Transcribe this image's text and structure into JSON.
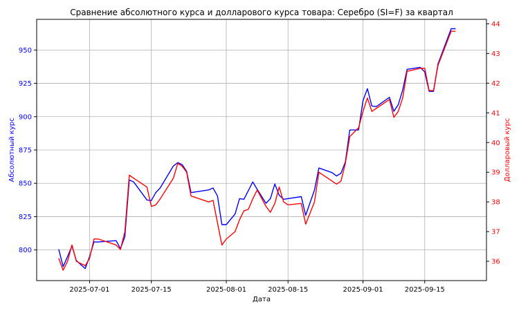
{
  "chart_data": {
    "type": "line",
    "title": "Сравнение абсолютного курса и долларового курса товара: Серебро (SI=F) за квартал",
    "xlabel": "Дата",
    "ylabel_left": "Абсолютный курс",
    "ylabel_right": "Долларовый курс",
    "x_ticks": [
      "2025-07-01",
      "2025-07-15",
      "2025-08-01",
      "2025-08-15",
      "2025-09-01",
      "2025-09-15"
    ],
    "ylim_left": [
      777,
      973
    ],
    "ylim_right": [
      35.35,
      44.15
    ],
    "yticks_left": [
      800,
      825,
      850,
      875,
      900,
      925,
      950
    ],
    "yticks_right": [
      36,
      37,
      38,
      39,
      40,
      41,
      42,
      43,
      44
    ],
    "xlim": [
      "2025-06-19",
      "2025-09-29"
    ],
    "grid": true,
    "colors": {
      "left": "#0000ff",
      "right": "#ff0000"
    },
    "series": [
      {
        "axis": "left",
        "color": "#0000ff",
        "x": [
          "2025-06-24",
          "2025-06-25",
          "2025-06-26",
          "2025-06-27",
          "2025-06-28",
          "2025-06-30",
          "2025-07-01",
          "2025-07-02",
          "2025-07-03",
          "2025-07-07",
          "2025-07-08",
          "2025-07-09",
          "2025-07-10",
          "2025-07-11",
          "2025-07-14",
          "2025-07-15",
          "2025-07-16",
          "2025-07-17",
          "2025-07-20",
          "2025-07-21",
          "2025-07-22",
          "2025-07-23",
          "2025-07-24",
          "2025-07-28",
          "2025-07-29",
          "2025-07-30",
          "2025-07-31",
          "2025-08-01",
          "2025-08-03",
          "2025-08-04",
          "2025-08-05",
          "2025-08-06",
          "2025-08-07",
          "2025-08-08",
          "2025-08-10",
          "2025-08-11",
          "2025-08-12",
          "2025-08-13",
          "2025-08-14",
          "2025-08-15",
          "2025-08-18",
          "2025-08-19",
          "2025-08-21",
          "2025-08-22",
          "2025-08-25",
          "2025-08-26",
          "2025-08-27",
          "2025-08-28",
          "2025-08-29",
          "2025-08-31",
          "2025-09-01",
          "2025-09-02",
          "2025-09-03",
          "2025-09-04",
          "2025-09-07",
          "2025-09-08",
          "2025-09-09",
          "2025-09-10",
          "2025-09-11",
          "2025-09-14",
          "2025-09-15",
          "2025-09-16",
          "2025-09-17",
          "2025-09-18",
          "2025-09-21",
          "2025-09-22"
        ],
        "values": [
          800.5,
          787.5,
          795.0,
          803.0,
          792.0,
          786.0,
          795.0,
          806.0,
          806.0,
          807.0,
          801.0,
          810.0,
          852.5,
          851.0,
          837.5,
          837.0,
          843.0,
          846.5,
          863.0,
          865.5,
          864.0,
          859.0,
          843.0,
          845.0,
          846.5,
          840.5,
          819.0,
          819.0,
          827.0,
          838.5,
          838.0,
          844.5,
          851.0,
          845.5,
          835.0,
          838.5,
          849.5,
          841.0,
          838.0,
          838.5,
          840.0,
          826.0,
          845.0,
          861.5,
          858.0,
          855.5,
          857.5,
          866.0,
          890.0,
          890.0,
          912.0,
          921.0,
          908.0,
          907.5,
          914.5,
          904.0,
          909.0,
          920.0,
          935.5,
          937.0,
          933.5,
          919.0,
          919.0,
          939.5,
          966.0,
          966.0
        ]
      },
      {
        "axis": "right",
        "color": "#ff0000",
        "x": [
          "2025-06-24",
          "2025-06-25",
          "2025-06-26",
          "2025-06-27",
          "2025-06-28",
          "2025-06-30",
          "2025-07-01",
          "2025-07-02",
          "2025-07-03",
          "2025-07-07",
          "2025-07-08",
          "2025-07-09",
          "2025-07-10",
          "2025-07-11",
          "2025-07-14",
          "2025-07-15",
          "2025-07-16",
          "2025-07-17",
          "2025-07-20",
          "2025-07-21",
          "2025-07-22",
          "2025-07-23",
          "2025-07-24",
          "2025-07-28",
          "2025-07-29",
          "2025-07-30",
          "2025-07-31",
          "2025-08-01",
          "2025-08-03",
          "2025-08-04",
          "2025-08-05",
          "2025-08-06",
          "2025-08-07",
          "2025-08-08",
          "2025-08-10",
          "2025-08-11",
          "2025-08-12",
          "2025-08-13",
          "2025-08-14",
          "2025-08-15",
          "2025-08-18",
          "2025-08-19",
          "2025-08-21",
          "2025-08-22",
          "2025-08-25",
          "2025-08-26",
          "2025-08-27",
          "2025-08-28",
          "2025-08-29",
          "2025-08-31",
          "2025-09-01",
          "2025-09-02",
          "2025-09-03",
          "2025-09-04",
          "2025-09-07",
          "2025-09-08",
          "2025-09-09",
          "2025-09-10",
          "2025-09-11",
          "2025-09-14",
          "2025-09-15",
          "2025-09-16",
          "2025-09-17",
          "2025-09-18",
          "2025-09-21",
          "2025-09-22"
        ],
        "values": [
          36.1,
          35.7,
          36.0,
          36.55,
          36.0,
          35.85,
          36.1,
          36.75,
          36.75,
          36.55,
          36.4,
          37.0,
          38.9,
          38.8,
          38.5,
          37.85,
          37.9,
          38.1,
          38.8,
          39.3,
          39.2,
          39.0,
          38.2,
          38.0,
          38.05,
          37.3,
          36.55,
          36.75,
          37.0,
          37.4,
          37.7,
          37.75,
          38.1,
          38.4,
          37.85,
          37.65,
          37.95,
          38.5,
          38.0,
          37.9,
          37.95,
          37.25,
          38.0,
          39.0,
          38.7,
          38.6,
          38.7,
          39.3,
          40.2,
          40.5,
          41.05,
          41.5,
          41.05,
          41.15,
          41.45,
          40.85,
          41.05,
          41.5,
          42.4,
          42.5,
          42.5,
          41.75,
          41.75,
          42.6,
          43.75,
          43.75
        ]
      }
    ]
  }
}
